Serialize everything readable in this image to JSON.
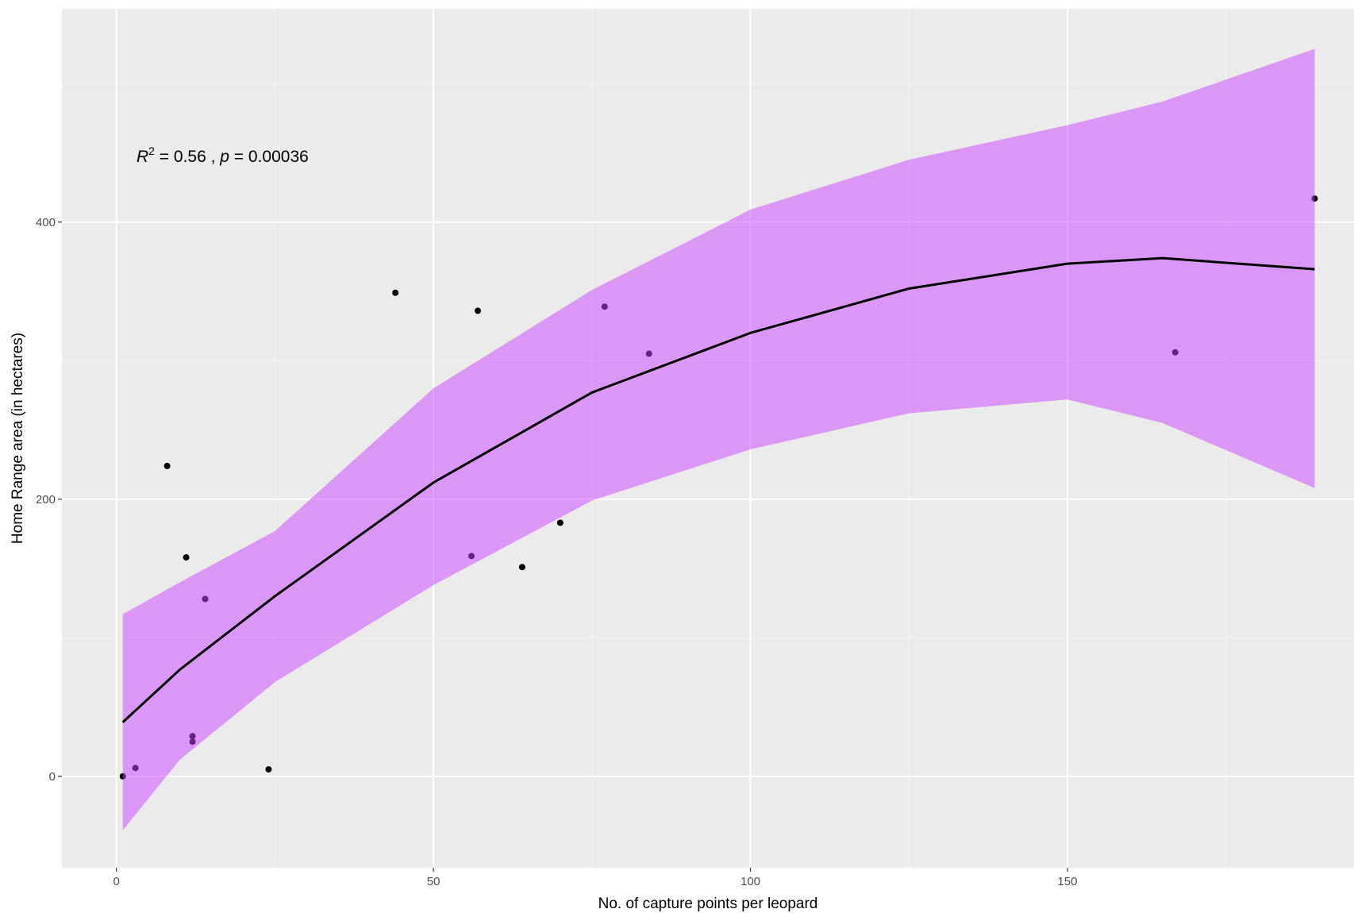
{
  "chart_data": {
    "type": "scatter",
    "x_label": "No. of capture points per leopard",
    "y_label": "Home Range area (in hectares)",
    "annotation": [
      "R",
      "2",
      " = 0.56 , ",
      "p",
      " = 0.00036"
    ],
    "x": [
      1,
      3,
      8,
      11,
      12,
      12,
      14,
      24,
      44,
      56,
      57,
      64,
      70,
      77,
      84,
      167,
      189
    ],
    "values": [
      0,
      6,
      224,
      158,
      25,
      29,
      128,
      5,
      349,
      159,
      336,
      151,
      183,
      339,
      305,
      306,
      417
    ],
    "point_color": "#000000",
    "fit": {
      "x": [
        1,
        10,
        25,
        50,
        75,
        100,
        125,
        150,
        165,
        189
      ],
      "values": [
        39,
        77,
        130,
        212,
        277,
        320,
        352,
        370,
        374,
        366
      ],
      "lower": [
        -39,
        12,
        68,
        138,
        199,
        236,
        262,
        272,
        255,
        208
      ],
      "upper": [
        117,
        140,
        177,
        280,
        351,
        409,
        445,
        470,
        487,
        525
      ],
      "color": "#000000",
      "band_color": "#cc44ff"
    },
    "xlim": [
      -8.6,
      195.2
    ],
    "ylim": [
      -66,
      554
    ],
    "xticks": [
      0,
      50,
      100,
      150
    ],
    "yticks": [
      0,
      200,
      400
    ],
    "x_minor_ticks": [
      25,
      75,
      125,
      175
    ],
    "y_minor_ticks": [
      100,
      300,
      500
    ],
    "grid": true
  }
}
